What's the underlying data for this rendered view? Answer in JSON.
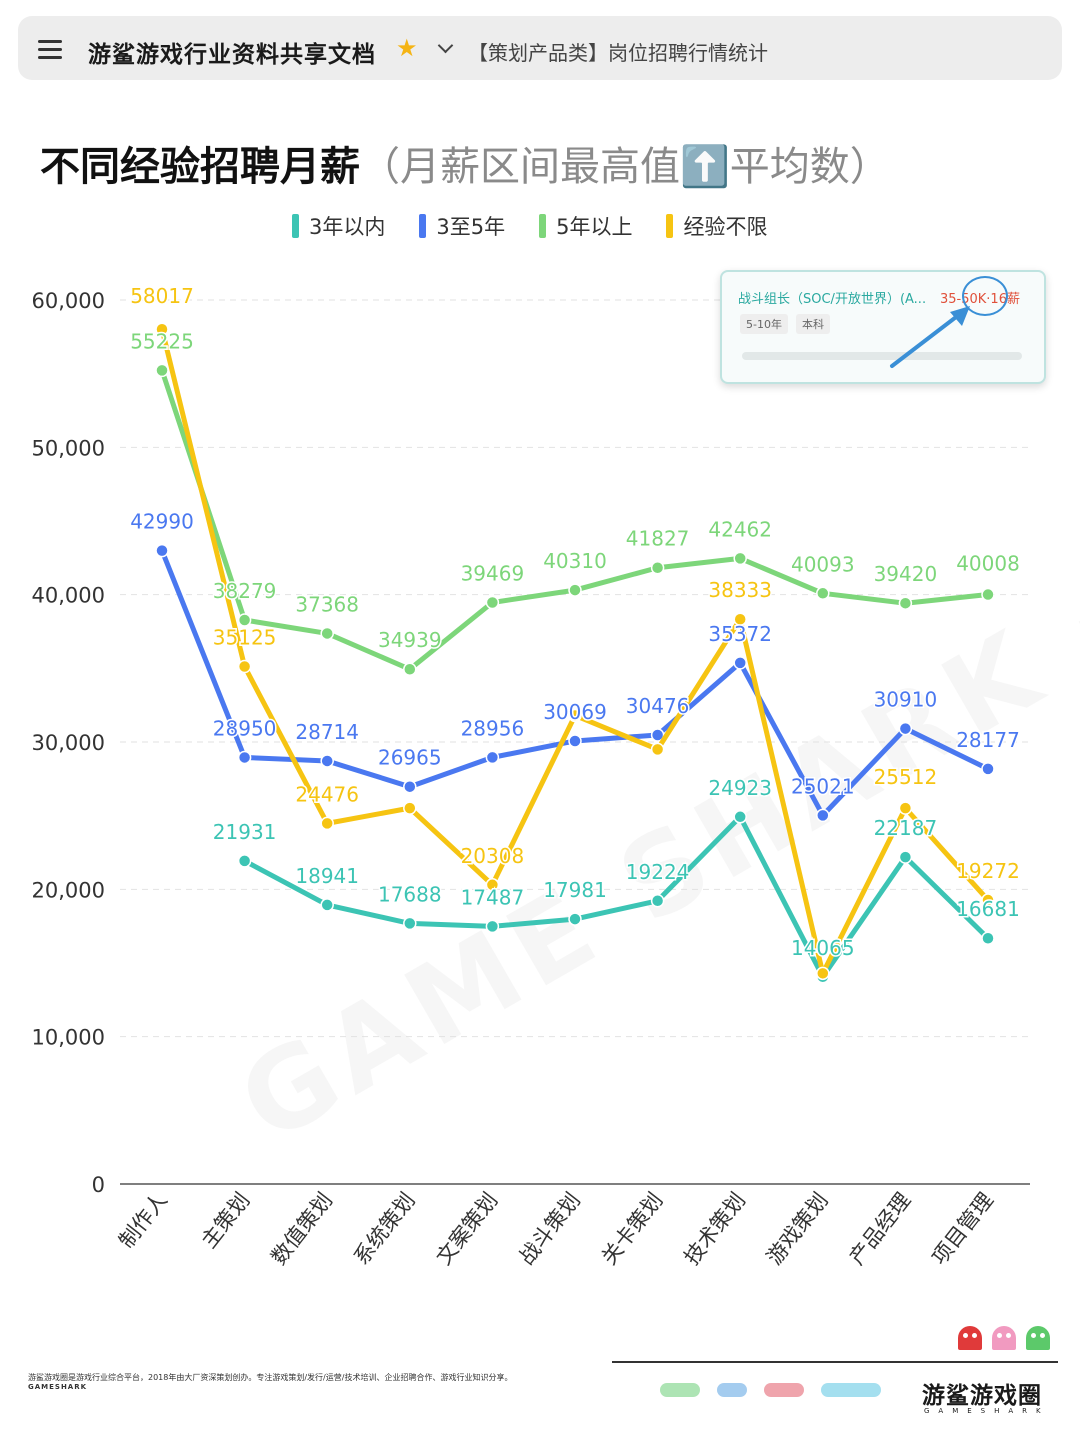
{
  "header": {
    "doc_title": "游鲨游戏行业资料共享文档",
    "doc_subtitle": "【策划产品类】岗位招聘行情统计"
  },
  "chart_data": {
    "type": "line",
    "title": "不同经验招聘月薪",
    "subtitle": "（月薪区间最高值⬆️平均数）",
    "xlabel": "",
    "ylabel": "",
    "ylim": [
      0,
      60000
    ],
    "yticks": [
      0,
      10000,
      20000,
      30000,
      40000,
      50000,
      60000
    ],
    "ytick_labels": [
      "0",
      "10,000",
      "20,000",
      "30,000",
      "40,000",
      "50,000",
      "60,000"
    ],
    "grid": true,
    "legend_position": "top-center",
    "categories": [
      "制作人",
      "主策划",
      "数值策划",
      "系统策划",
      "文案策划",
      "战斗策划",
      "关卡策划",
      "技术策划",
      "游戏策划",
      "产品经理",
      "项目管理"
    ],
    "series": [
      {
        "name": "3年以内",
        "color": "#3cc4b4",
        "values": [
          null,
          21931,
          18941,
          17688,
          17487,
          17981,
          19224,
          24923,
          14065,
          22187,
          16681
        ]
      },
      {
        "name": "3至5年",
        "color": "#4a78f0",
        "values": [
          42990,
          28950,
          28714,
          26965,
          28956,
          30069,
          30476,
          35372,
          25021,
          30910,
          28177
        ]
      },
      {
        "name": "5年以上",
        "color": "#7dd67a",
        "values": [
          55225,
          38279,
          37368,
          34939,
          39469,
          40310,
          41827,
          42462,
          40093,
          39420,
          40008
        ]
      },
      {
        "name": "经验不限",
        "color": "#f6c412",
        "values": [
          58017,
          35125,
          24476,
          25512,
          20308,
          31800,
          29500,
          38333,
          14300,
          25512,
          19272
        ]
      }
    ],
    "data_labels": [
      {
        "series": 3,
        "index": 0,
        "text": "58017"
      },
      {
        "series": 2,
        "index": 0,
        "text": "55225"
      },
      {
        "series": 1,
        "index": 0,
        "text": "42990"
      },
      {
        "series": 2,
        "index": 1,
        "text": "38279"
      },
      {
        "series": 3,
        "index": 1,
        "text": "35125"
      },
      {
        "series": 1,
        "index": 1,
        "text": "28950"
      },
      {
        "series": 0,
        "index": 1,
        "text": "21931"
      },
      {
        "series": 2,
        "index": 2,
        "text": "37368"
      },
      {
        "series": 1,
        "index": 2,
        "text": "28714"
      },
      {
        "series": 3,
        "index": 2,
        "text": "24476"
      },
      {
        "series": 0,
        "index": 2,
        "text": "18941"
      },
      {
        "series": 2,
        "index": 3,
        "text": "34939"
      },
      {
        "series": 1,
        "index": 3,
        "text": "26965"
      },
      {
        "series": 0,
        "index": 3,
        "text": "17688"
      },
      {
        "series": 2,
        "index": 4,
        "text": "39469"
      },
      {
        "series": 1,
        "index": 4,
        "text": "28956"
      },
      {
        "series": 3,
        "index": 4,
        "text": "20308"
      },
      {
        "series": 0,
        "index": 4,
        "text": "17487"
      },
      {
        "series": 2,
        "index": 5,
        "text": "40310"
      },
      {
        "series": 1,
        "index": 5,
        "text": "30069"
      },
      {
        "series": 0,
        "index": 5,
        "text": "17981"
      },
      {
        "series": 2,
        "index": 6,
        "text": "41827"
      },
      {
        "series": 1,
        "index": 6,
        "text": "30476"
      },
      {
        "series": 0,
        "index": 6,
        "text": "19224"
      },
      {
        "series": 2,
        "index": 7,
        "text": "42462"
      },
      {
        "series": 3,
        "index": 7,
        "text": "38333"
      },
      {
        "series": 1,
        "index": 7,
        "text": "35372"
      },
      {
        "series": 0,
        "index": 7,
        "text": "24923"
      },
      {
        "series": 2,
        "index": 8,
        "text": "40093"
      },
      {
        "series": 1,
        "index": 8,
        "text": "25021"
      },
      {
        "series": 0,
        "index": 8,
        "text": "14065"
      },
      {
        "series": 2,
        "index": 9,
        "text": "39420"
      },
      {
        "series": 1,
        "index": 9,
        "text": "30910"
      },
      {
        "series": 3,
        "index": 9,
        "text": "25512"
      },
      {
        "series": 0,
        "index": 9,
        "text": "22187"
      },
      {
        "series": 2,
        "index": 10,
        "text": "40008"
      },
      {
        "series": 1,
        "index": 10,
        "text": "28177"
      },
      {
        "series": 3,
        "index": 10,
        "text": "19272"
      },
      {
        "series": 0,
        "index": 10,
        "text": "16681"
      }
    ]
  },
  "callout": {
    "title": "战斗组长（SOC/开放世界）(A...",
    "salary": "35-50K·16薪",
    "tags": [
      "5-10年",
      "本科"
    ]
  },
  "footer": {
    "description": "游鲨游戏圈是游戏行业综合平台，2018年由大厂资深策划创办。专注游戏策划/发行/运营/技术培训、企业招聘合作、游戏行业知识分享。",
    "brand_en_small": "GAMESHARK",
    "brand": "游鲨游戏圈",
    "brand_en": "GAMESHARK"
  },
  "colors": {
    "series_3_years_within": "#3cc4b4",
    "series_3_to_5": "#4a78f0",
    "series_5_plus": "#7dd67a",
    "series_unlimited": "#f6c412"
  }
}
